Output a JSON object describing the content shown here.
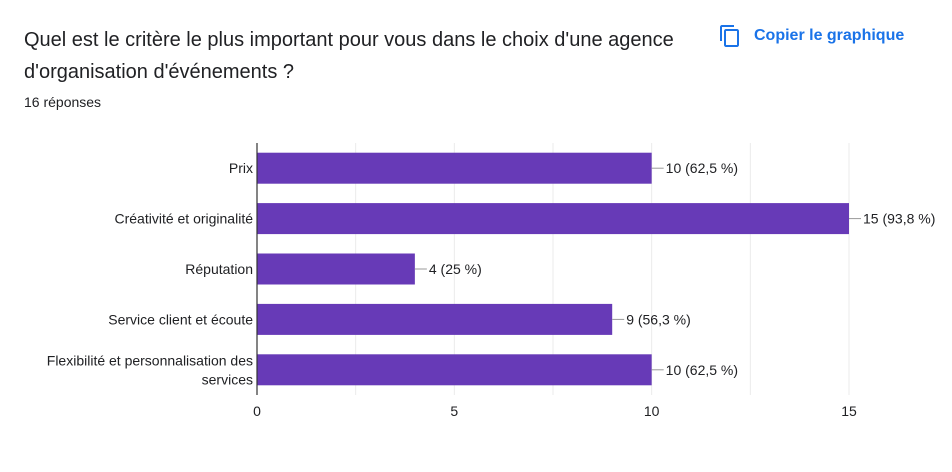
{
  "question": "Quel est le critère le plus important pour vous dans le choix d'une agence d'organisation d'événements ?",
  "response_count": "16 réponses",
  "copy_button": {
    "label": "Copier le graphique",
    "icon": "copy-icon"
  },
  "colors": {
    "bar": "#673ab7",
    "accent": "#1a73e8",
    "grid": "#ebebeb",
    "axis": "#333333",
    "text": "#202124"
  },
  "chart_data": {
    "type": "bar",
    "orientation": "horizontal",
    "categories": [
      "Prix",
      "Créativité et originalité",
      "Réputation",
      "Service client et écoute",
      "Flexibilité et personnalisation des services"
    ],
    "category_lines": [
      [
        "Prix"
      ],
      [
        "Créativité et originalité"
      ],
      [
        "Réputation"
      ],
      [
        "Service client et écoute"
      ],
      [
        "Flexibilité et personnalisation des",
        "services"
      ]
    ],
    "values": [
      10,
      15,
      4,
      9,
      10
    ],
    "data_labels": [
      "10 (62,5 %)",
      "15 (93,8 %)",
      "4 (25 %)",
      "9 (56,3 %)",
      "10 (62,5 %)"
    ],
    "xlim": [
      0,
      15
    ],
    "xticks": [
      0,
      5,
      10,
      15
    ],
    "title": "",
    "xlabel": "",
    "ylabel": "",
    "grid": true
  }
}
